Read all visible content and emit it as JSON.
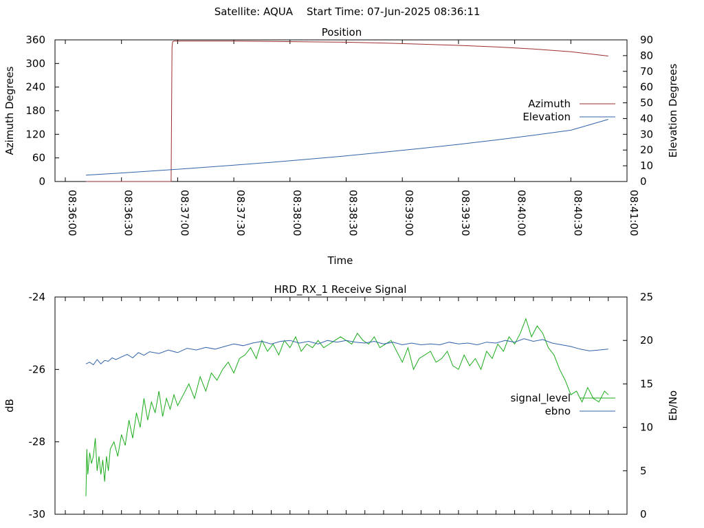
{
  "header": {
    "satellite": "Satellite: AQUA",
    "start_time": "Start Time: 07-Jun-2025 08:36:11"
  },
  "chart_data": [
    {
      "type": "line",
      "title": "Position",
      "xlabel": "Time",
      "ylabel_left": "Azimuth Degrees",
      "ylabel_right": "Elevation Degrees",
      "x_tick_labels": [
        "08:36:00",
        "08:36:30",
        "08:37:00",
        "08:37:30",
        "08:38:00",
        "08:38:30",
        "08:39:00",
        "08:39:30",
        "08:40:00",
        "08:40:30",
        "08:41:00"
      ],
      "xlim_seconds_after_0836": [
        0,
        300
      ],
      "ylim_left": [
        0,
        360
      ],
      "ylim_right": [
        0,
        90
      ],
      "y_ticks_left": [
        "0",
        "60",
        "120",
        "180",
        "240",
        "300",
        "360"
      ],
      "y_ticks_right": [
        "0",
        "10",
        "20",
        "30",
        "40",
        "50",
        "60",
        "70",
        "80",
        "90"
      ],
      "legend_position": "right",
      "series": [
        {
          "name": "Azimuth",
          "axis": "left",
          "color": "#9b2c2c",
          "x": [
            11,
            20,
            30,
            40,
            56.5,
            57,
            57.3,
            58,
            60,
            75,
            90,
            110,
            130,
            150,
            170,
            190,
            210,
            230,
            250,
            270,
            290
          ],
          "y": [
            0,
            0,
            0,
            0,
            0,
            340,
            355,
            357,
            357,
            357,
            357,
            356,
            355,
            354,
            352,
            349,
            346,
            342,
            337,
            330,
            319
          ]
        },
        {
          "name": "Elevation",
          "axis": "right",
          "color": "#2f62a8",
          "x": [
            11,
            30,
            50,
            70,
            90,
            110,
            130,
            150,
            170,
            190,
            210,
            230,
            250,
            270,
            290
          ],
          "y": [
            4,
            5.4,
            7,
            8.6,
            10.4,
            12.2,
            14.2,
            16.3,
            18.6,
            21,
            23.6,
            26.4,
            29.4,
            32.6,
            39.5
          ]
        }
      ]
    },
    {
      "type": "line",
      "title": "HRD_RX_1 Receive Signal",
      "ylabel_left": "dB",
      "ylabel_right": "Eb/No",
      "ylim_left": [
        -30,
        -24
      ],
      "ylim_right": [
        0,
        25
      ],
      "y_ticks_left": [
        "-30",
        "-28",
        "-26",
        "-24"
      ],
      "y_ticks_right": [
        "0",
        "5",
        "10",
        "15",
        "20",
        "25"
      ],
      "xlim_seconds_after_0836": [
        0,
        300
      ],
      "x_minor_tick_spacing_seconds": 10,
      "legend_position": "right",
      "series": [
        {
          "name": "signal_level",
          "axis": "left",
          "color": "#1aab1a",
          "x": [
            11,
            11.5,
            12,
            13,
            14,
            15,
            16,
            17,
            18,
            19,
            20,
            21,
            22,
            23,
            24,
            26,
            28,
            30,
            32,
            34,
            36,
            38,
            40,
            42,
            44,
            46,
            48,
            50,
            52,
            54,
            56,
            58,
            60,
            63,
            66,
            69,
            72,
            75,
            78,
            81,
            84,
            87,
            90,
            93,
            96,
            99,
            102,
            105,
            108,
            111,
            114,
            117,
            120,
            123,
            126,
            129,
            132,
            135,
            138,
            141,
            144,
            147,
            150,
            153,
            156,
            159,
            162,
            165,
            168,
            171,
            174,
            177,
            180,
            183,
            186,
            189,
            192,
            195,
            198,
            201,
            204,
            207,
            210,
            213,
            216,
            219,
            222,
            225,
            228,
            231,
            234,
            237,
            240,
            243,
            246,
            249,
            252,
            255,
            258,
            261,
            264,
            267,
            270,
            273,
            276,
            279,
            282,
            285,
            288,
            290
          ],
          "y": [
            -29.5,
            -28.2,
            -28.9,
            -28.3,
            -28.6,
            -28.4,
            -27.9,
            -28.8,
            -28.4,
            -28.9,
            -28.5,
            -29.1,
            -28.4,
            -28.8,
            -28.2,
            -28.0,
            -28.4,
            -27.8,
            -28.1,
            -27.4,
            -27.9,
            -27.2,
            -27.6,
            -26.8,
            -27.4,
            -26.9,
            -27.2,
            -26.6,
            -27.3,
            -26.8,
            -27.1,
            -26.7,
            -27.0,
            -26.7,
            -26.4,
            -26.8,
            -26.2,
            -26.6,
            -26.1,
            -26.3,
            -26.0,
            -25.8,
            -26.1,
            -25.7,
            -25.6,
            -25.4,
            -25.7,
            -25.2,
            -25.5,
            -25.3,
            -25.6,
            -25.2,
            -25.4,
            -25.1,
            -25.5,
            -25.3,
            -25.4,
            -25.2,
            -25.4,
            -25.3,
            -25.2,
            -25.1,
            -25.2,
            -25.3,
            -25.0,
            -25.2,
            -25.3,
            -25.1,
            -25.4,
            -25.3,
            -25.2,
            -25.5,
            -25.8,
            -25.4,
            -26.0,
            -25.7,
            -25.6,
            -25.5,
            -25.8,
            -25.7,
            -25.5,
            -25.9,
            -26.0,
            -25.6,
            -25.9,
            -25.7,
            -26.0,
            -25.5,
            -25.7,
            -25.3,
            -25.5,
            -25.1,
            -25.3,
            -25.0,
            -24.6,
            -25.1,
            -24.8,
            -25.0,
            -25.4,
            -25.6,
            -26.0,
            -26.3,
            -26.7,
            -26.6,
            -26.9,
            -26.5,
            -26.8,
            -26.9,
            -26.6,
            -26.7
          ]
        },
        {
          "name": "ebno",
          "axis": "right",
          "color": "#2f62a8",
          "x": [
            11,
            13,
            15,
            17,
            19,
            21,
            23,
            25,
            27,
            30,
            33,
            36,
            39,
            42,
            45,
            50,
            55,
            60,
            65,
            70,
            75,
            80,
            85,
            90,
            95,
            100,
            105,
            110,
            115,
            120,
            125,
            130,
            135,
            140,
            145,
            150,
            155,
            160,
            165,
            170,
            175,
            180,
            185,
            190,
            195,
            200,
            205,
            210,
            215,
            220,
            225,
            230,
            235,
            240,
            245,
            250,
            255,
            260,
            265,
            270,
            275,
            280,
            285,
            290
          ],
          "y": [
            17.3,
            17.5,
            17.2,
            17.8,
            17.3,
            17.7,
            17.6,
            18.0,
            17.8,
            18.1,
            18.4,
            18.0,
            18.6,
            18.3,
            18.7,
            18.5,
            18.9,
            18.6,
            19.1,
            18.9,
            19.2,
            19.0,
            19.3,
            19.6,
            19.4,
            19.7,
            19.9,
            19.6,
            19.9,
            20.0,
            19.7,
            19.9,
            19.6,
            20.0,
            19.8,
            20.0,
            19.8,
            19.7,
            19.9,
            19.6,
            19.8,
            19.5,
            19.7,
            19.5,
            19.6,
            19.5,
            19.8,
            19.6,
            19.7,
            19.5,
            19.8,
            19.7,
            20.0,
            19.8,
            20.2,
            19.9,
            20.1,
            19.7,
            19.5,
            19.3,
            19.0,
            18.8,
            18.9,
            19.0
          ]
        }
      ]
    }
  ]
}
